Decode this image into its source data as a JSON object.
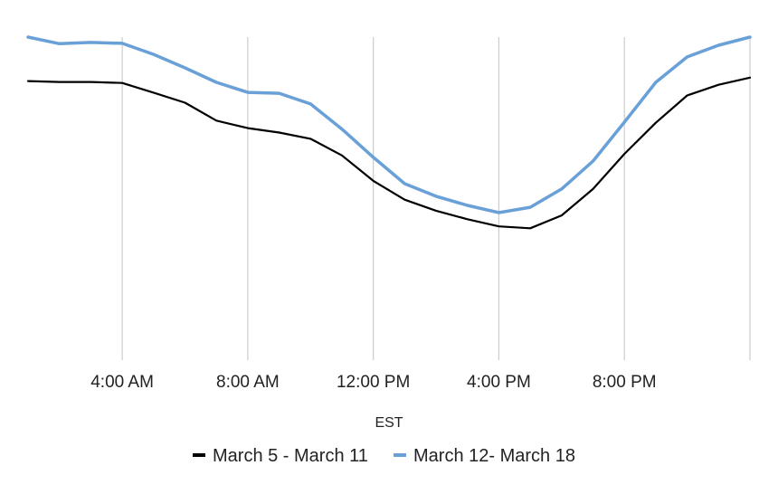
{
  "chart_data": {
    "type": "line",
    "xlabel": "EST",
    "x": [
      1,
      2,
      3,
      4,
      5,
      6,
      7,
      8,
      9,
      10,
      11,
      12,
      13,
      14,
      15,
      16,
      17,
      18,
      19,
      20,
      21,
      22,
      23,
      24
    ],
    "x_ticks": [
      4,
      8,
      12,
      16,
      20,
      24
    ],
    "x_tick_labels": [
      "4:00 AM",
      "8:00 AM",
      "12:00 PM",
      "4:00 PM",
      "8:00 PM",
      ""
    ],
    "xlim": [
      1,
      24
    ],
    "ylim": [
      0,
      100
    ],
    "grid": "vertical",
    "legend_position": "bottom",
    "series": [
      {
        "name": "March 5 - March 11",
        "color": "#000000",
        "values": [
          86,
          85.7,
          85.7,
          85.4,
          82.3,
          79.1,
          73.4,
          71,
          69.6,
          67.6,
          62.3,
          54.2,
          48.2,
          44.7,
          42,
          39.7,
          39.1,
          43.2,
          51.6,
          62.8,
          72.7,
          81.4,
          84.8,
          87.1
        ]
      },
      {
        "name": "March 12- March 18",
        "color": "#6aa0d8",
        "values": [
          100,
          97.9,
          98.3,
          98,
          94.5,
          90.2,
          85.6,
          82.4,
          82.1,
          78.7,
          70.7,
          61.7,
          53.3,
          49.3,
          46.4,
          44.1,
          45.8,
          51.6,
          60.5,
          72.9,
          85.6,
          93.7,
          97.4,
          100
        ]
      }
    ]
  }
}
